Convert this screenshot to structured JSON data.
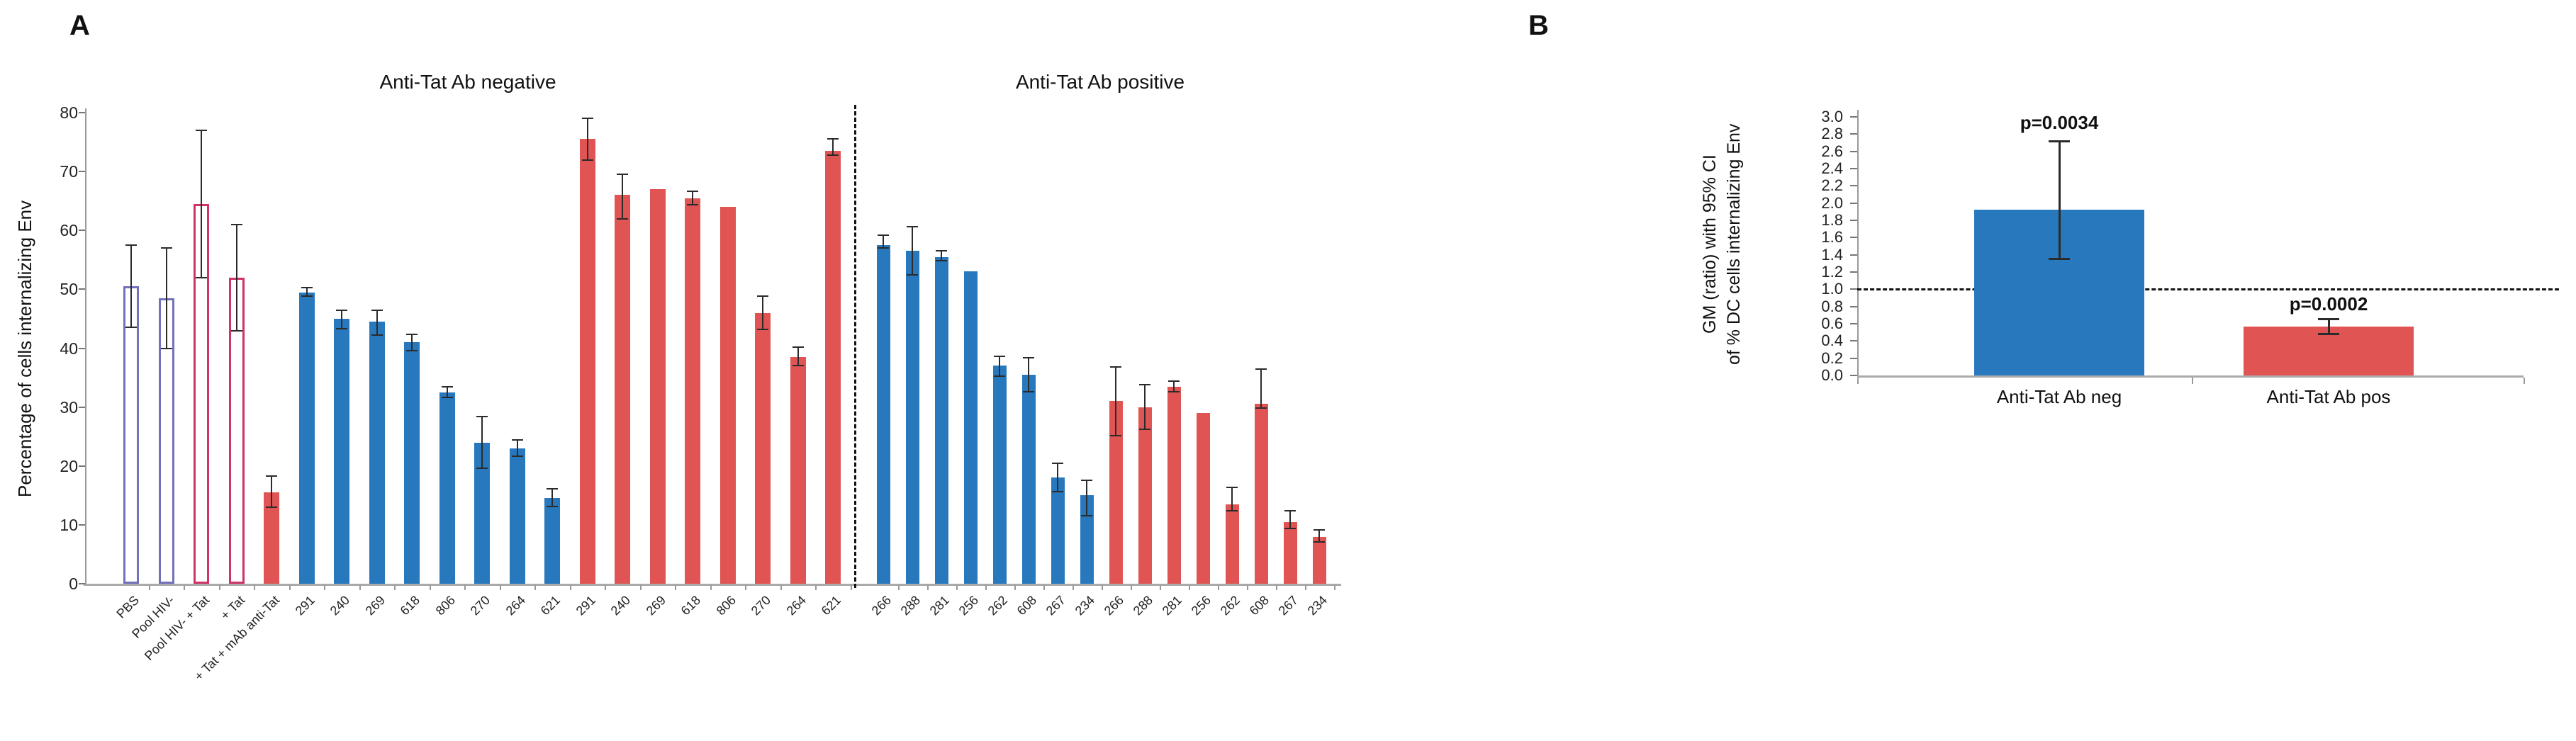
{
  "figure": {
    "panel_a_letter": "A",
    "panel_b_letter": "B"
  },
  "colors": {
    "blue": "#2878bd",
    "red": "#e05454",
    "outline_blue": "#7272bc",
    "outline_red": "#cf3468",
    "error_bar": "#2b2b2b",
    "axis": "#999999",
    "dashed_line": "#111111"
  },
  "panel_a": {
    "title_negative": "Anti-Tat Ab negative",
    "title_positive": "Anti-Tat Ab positive",
    "y_axis_label": "Percentage of cells internalizing Env",
    "chart_data": {
      "type": "bar",
      "ylabel": "Percentage of cells internalizing Env",
      "ylim": [
        0,
        80
      ],
      "ytick_step": 10,
      "yticks": [
        0,
        10,
        20,
        30,
        40,
        50,
        60,
        70,
        80
      ],
      "grid": false,
      "section_titles": [
        "Anti-Tat Ab negative",
        "Anti-Tat Ab positive"
      ],
      "bars": [
        {
          "group": "controls",
          "label": "PBS",
          "value": 50.5,
          "err_lo": 43.5,
          "err_hi": 57.5,
          "color": "outline_blue",
          "hollow": true
        },
        {
          "group": "controls",
          "label": "Pool HIV-",
          "value": 48.5,
          "err_lo": 40.0,
          "err_hi": 57.0,
          "color": "outline_blue",
          "hollow": true
        },
        {
          "group": "controls",
          "label": "Pool HIV- + Tat",
          "value": 64.5,
          "err_lo": 52.0,
          "err_hi": 77.0,
          "color": "outline_red",
          "hollow": true
        },
        {
          "group": "controls",
          "label": "+ Tat",
          "value": 52.0,
          "err_lo": 43.0,
          "err_hi": 61.0,
          "color": "outline_red",
          "hollow": true
        },
        {
          "group": "controls",
          "label": "+ Tat + mAb anti-Tat",
          "value": 15.5,
          "err_lo": 13.0,
          "err_hi": 18.3,
          "color": "red",
          "hollow": false
        },
        {
          "group": "negative_blue",
          "label": "291",
          "value": 49.5,
          "err_lo": 48.8,
          "err_hi": 50.3,
          "color": "blue",
          "hollow": false
        },
        {
          "group": "negative_blue",
          "label": "240",
          "value": 45.0,
          "err_lo": 43.3,
          "err_hi": 46.4,
          "color": "blue",
          "hollow": false
        },
        {
          "group": "negative_blue",
          "label": "269",
          "value": 44.5,
          "err_lo": 42.2,
          "err_hi": 46.4,
          "color": "blue",
          "hollow": false
        },
        {
          "group": "negative_blue",
          "label": "618",
          "value": 41.0,
          "err_lo": 39.6,
          "err_hi": 42.3,
          "color": "blue",
          "hollow": false
        },
        {
          "group": "negative_blue",
          "label": "806",
          "value": 32.5,
          "err_lo": 31.6,
          "err_hi": 33.4,
          "color": "blue",
          "hollow": false
        },
        {
          "group": "negative_blue",
          "label": "270",
          "value": 24.0,
          "err_lo": 19.6,
          "err_hi": 28.4,
          "color": "blue",
          "hollow": false
        },
        {
          "group": "negative_blue",
          "label": "264",
          "value": 23.0,
          "err_lo": 21.6,
          "err_hi": 24.4,
          "color": "blue",
          "hollow": false
        },
        {
          "group": "negative_blue",
          "label": "621",
          "value": 14.5,
          "err_lo": 13.1,
          "err_hi": 16.1,
          "color": "blue",
          "hollow": false
        },
        {
          "group": "negative_red",
          "label": "291",
          "value": 75.5,
          "err_lo": 72.0,
          "err_hi": 79.0,
          "color": "red",
          "hollow": false
        },
        {
          "group": "negative_red",
          "label": "240",
          "value": 66.0,
          "err_lo": 62.0,
          "err_hi": 69.5,
          "color": "red",
          "hollow": false
        },
        {
          "group": "negative_red",
          "label": "269",
          "value": 67.0,
          "err_lo": null,
          "err_hi": null,
          "color": "red",
          "hollow": false
        },
        {
          "group": "negative_red",
          "label": "618",
          "value": 65.5,
          "err_lo": 64.4,
          "err_hi": 66.6,
          "color": "red",
          "hollow": false
        },
        {
          "group": "negative_red",
          "label": "806",
          "value": 64.0,
          "err_lo": null,
          "err_hi": null,
          "color": "red",
          "hollow": false
        },
        {
          "group": "negative_red",
          "label": "270",
          "value": 46.0,
          "err_lo": 43.2,
          "err_hi": 48.8,
          "color": "red",
          "hollow": false
        },
        {
          "group": "negative_red",
          "label": "264",
          "value": 38.5,
          "err_lo": 37.0,
          "err_hi": 40.2,
          "color": "red",
          "hollow": false
        },
        {
          "group": "negative_red",
          "label": "621",
          "value": 73.5,
          "err_lo": 72.8,
          "err_hi": 75.6,
          "color": "red",
          "hollow": false
        },
        {
          "group": "positive_blue",
          "label": "266",
          "value": 57.5,
          "err_lo": 57.0,
          "err_hi": 59.2,
          "color": "blue",
          "hollow": false
        },
        {
          "group": "positive_blue",
          "label": "288",
          "value": 56.5,
          "err_lo": 52.4,
          "err_hi": 60.6,
          "color": "blue",
          "hollow": false
        },
        {
          "group": "positive_blue",
          "label": "281",
          "value": 55.5,
          "err_lo": 54.9,
          "err_hi": 56.6,
          "color": "blue",
          "hollow": false
        },
        {
          "group": "positive_blue",
          "label": "256",
          "value": 53.0,
          "err_lo": null,
          "err_hi": null,
          "color": "blue",
          "hollow": false
        },
        {
          "group": "positive_blue",
          "label": "262",
          "value": 37.0,
          "err_lo": 35.2,
          "err_hi": 38.6,
          "color": "blue",
          "hollow": false
        },
        {
          "group": "positive_blue",
          "label": "608",
          "value": 35.5,
          "err_lo": 32.6,
          "err_hi": 38.4,
          "color": "blue",
          "hollow": false
        },
        {
          "group": "positive_blue",
          "label": "267",
          "value": 18.0,
          "err_lo": 15.6,
          "err_hi": 20.4,
          "color": "blue",
          "hollow": false
        },
        {
          "group": "positive_blue",
          "label": "234",
          "value": 15.0,
          "err_lo": 11.6,
          "err_hi": 17.6,
          "color": "blue",
          "hollow": false
        },
        {
          "group": "positive_red",
          "label": "266",
          "value": 31.0,
          "err_lo": 25.2,
          "err_hi": 36.8,
          "color": "red",
          "hollow": false
        },
        {
          "group": "positive_red",
          "label": "288",
          "value": 30.0,
          "err_lo": 26.2,
          "err_hi": 33.8,
          "color": "red",
          "hollow": false
        },
        {
          "group": "positive_red",
          "label": "281",
          "value": 33.5,
          "err_lo": 32.6,
          "err_hi": 34.4,
          "color": "red",
          "hollow": false
        },
        {
          "group": "positive_red",
          "label": "256",
          "value": 29.0,
          "err_lo": null,
          "err_hi": null,
          "color": "red",
          "hollow": false
        },
        {
          "group": "positive_red",
          "label": "262",
          "value": 13.5,
          "err_lo": 12.4,
          "err_hi": 16.4,
          "color": "red",
          "hollow": false
        },
        {
          "group": "positive_red",
          "label": "608",
          "value": 30.5,
          "err_lo": 29.8,
          "err_hi": 36.4,
          "color": "red",
          "hollow": false
        },
        {
          "group": "positive_red",
          "label": "267",
          "value": 10.5,
          "err_lo": 9.4,
          "err_hi": 12.4,
          "color": "red",
          "hollow": false
        },
        {
          "group": "positive_red",
          "label": "234",
          "value": 8.0,
          "err_lo": 7.1,
          "err_hi": 9.1,
          "color": "red",
          "hollow": false
        }
      ]
    }
  },
  "panel_b": {
    "y_axis_label_line1": "GM (ratio) with 95% CI",
    "y_axis_label_line2": "of % DC cells internalizing Env",
    "chart_data": {
      "type": "bar",
      "categories": [
        "Anti-Tat Ab neg",
        "Anti-Tat Ab pos"
      ],
      "values": [
        1.92,
        0.57
      ],
      "ci_low": [
        1.35,
        0.48
      ],
      "ci_high": [
        2.72,
        0.65
      ],
      "p_values": [
        "p=0.0034",
        "p=0.0002"
      ],
      "bar_colors": [
        "blue",
        "red"
      ],
      "reference_line": 1.0,
      "ylim": [
        0,
        3.0
      ],
      "ytick_step": 0.2,
      "yticks": [
        0.0,
        0.2,
        0.4,
        0.6,
        0.8,
        1.0,
        1.2,
        1.4,
        1.6,
        1.8,
        2.0,
        2.2,
        2.4,
        2.6,
        2.8,
        3.0
      ],
      "grid": false
    }
  }
}
